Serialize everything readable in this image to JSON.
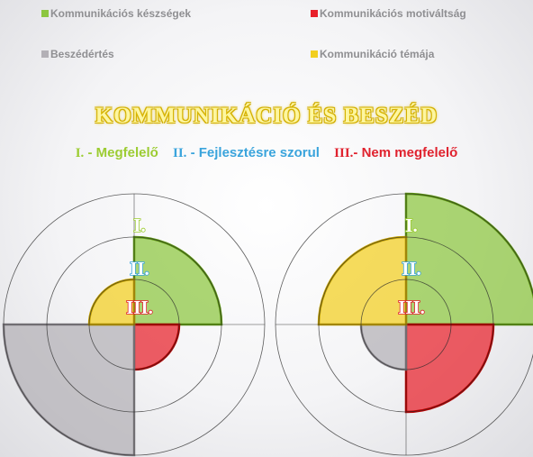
{
  "legend": [
    {
      "label": "Kommunikációs készségek",
      "color": "#8cc63f"
    },
    {
      "label": "Kommunikációs motiváltság",
      "color": "#e8202a"
    },
    {
      "label": "Beszédértés",
      "color": "#b3b0b6"
    },
    {
      "label": "Kommunikáció témája",
      "color": "#f2cf1e"
    }
  ],
  "title": "KOMMUNIKÁCIÓ ÉS BESZÉD",
  "level_key": [
    {
      "roman": "I.",
      "text": " - Megfelelő",
      "color": "#9ccc32"
    },
    {
      "roman": "II.",
      "text": " - Fejlesztésre szorul",
      "color": "#3aa4dc"
    },
    {
      "roman": "III.",
      "text": "- Nem megfelelő",
      "color": "#e0222e"
    }
  ],
  "ring_labels": [
    "I.",
    "II.",
    "III."
  ],
  "diagrams": [
    {
      "levels": {
        "Kommunikációs készségek": 2,
        "Kommunikációs motiváltság": 3,
        "Beszédértés": 1,
        "Kommunikáció témája": 3
      }
    },
    {
      "levels": {
        "Kommunikációs készségek": 1,
        "Kommunikációs motiváltság": 2,
        "Beszédértés": 3,
        "Kommunikáció témája": 2
      }
    }
  ]
}
